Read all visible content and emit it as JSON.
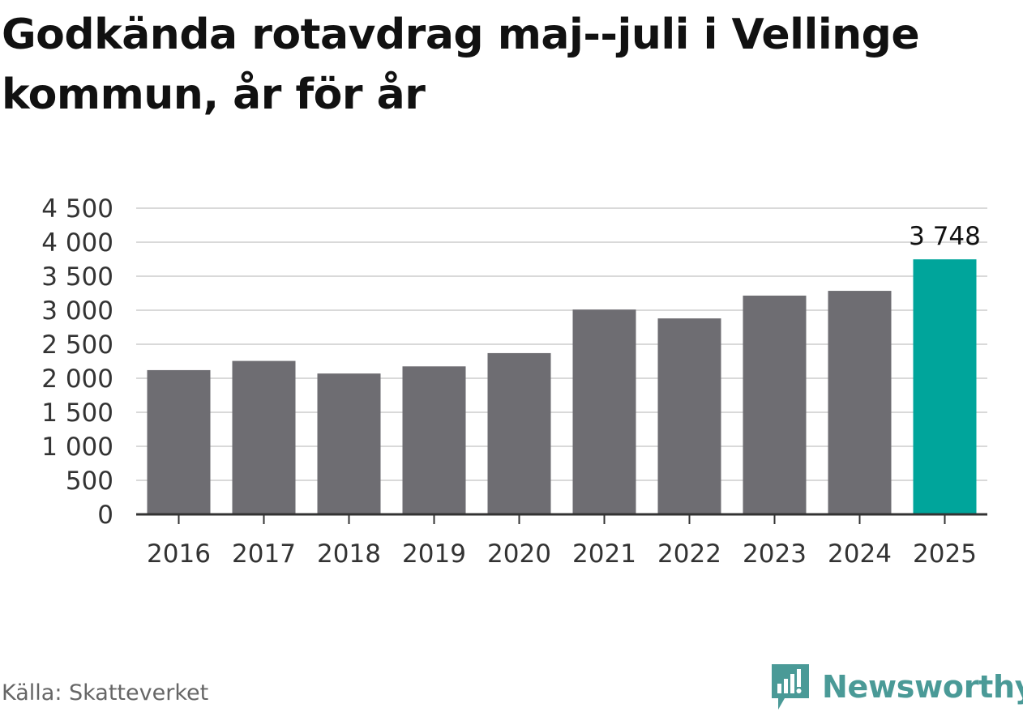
{
  "title": "Godkända rotavdrag maj--juli i Vellinge kommun, år för år",
  "source": "Källa: Skatteverket",
  "brand": {
    "name": "Newsworthy",
    "logo_icon": "newsworthy-logo-icon",
    "color": "#4a9a97"
  },
  "colors": {
    "bar": "#6e6d72",
    "highlight": "#00a59b",
    "grid": "#d9d9d9",
    "axis": "#333333"
  },
  "chart_data": {
    "type": "bar",
    "title": "Godkända rotavdrag maj--juli i Vellinge kommun, år för år",
    "xlabel": "",
    "ylabel": "",
    "categories": [
      "2016",
      "2017",
      "2018",
      "2019",
      "2020",
      "2021",
      "2022",
      "2023",
      "2024",
      "2025"
    ],
    "values": [
      2120,
      2255,
      2070,
      2175,
      2370,
      3010,
      2880,
      3215,
      3285,
      3748
    ],
    "highlight_index": 9,
    "data_labels": [
      {
        "index": 9,
        "text": "3 748"
      }
    ],
    "ylim": [
      0,
      4500
    ],
    "yticks": [
      0,
      500,
      1000,
      1500,
      2000,
      2500,
      3000,
      3500,
      4000,
      4500
    ],
    "ytick_labels": [
      "0",
      "500",
      "1 000",
      "1 500",
      "2 000",
      "2 500",
      "3 000",
      "3 500",
      "4 000",
      "4 500"
    ],
    "grid": true,
    "legend": "none"
  }
}
